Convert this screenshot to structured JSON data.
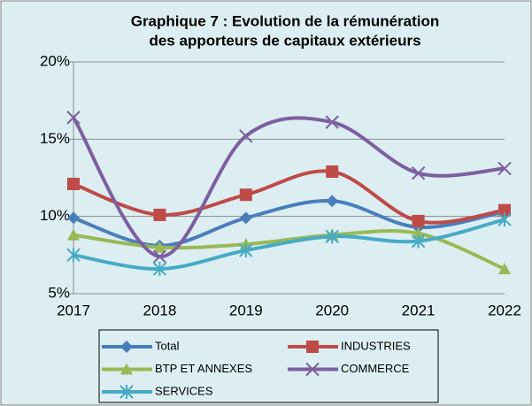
{
  "chart_data": {
    "type": "line",
    "title": [
      "Graphique 7 : Evolution de la rémunération",
      "des apporteurs de capitaux extérieurs"
    ],
    "categories": [
      "2017",
      "2018",
      "2019",
      "2020",
      "2021",
      "2022"
    ],
    "ylim": [
      5,
      20
    ],
    "yticks": [
      {
        "value": 5,
        "label": "5%"
      },
      {
        "value": 10,
        "label": "10%"
      },
      {
        "value": 15,
        "label": "15%"
      },
      {
        "value": 20,
        "label": "20%"
      }
    ],
    "grid": true,
    "legend": "bottom",
    "series": [
      {
        "name": "Total",
        "color": "#4a7ebb",
        "marker": "diamond",
        "values": [
          9.9,
          8.1,
          9.9,
          11.0,
          9.3,
          10.3
        ]
      },
      {
        "name": "INDUSTRIES",
        "color": "#be4b48",
        "marker": "square",
        "values": [
          12.1,
          10.1,
          11.4,
          12.9,
          9.7,
          10.4
        ]
      },
      {
        "name": "BTP ET ANNEXES",
        "color": "#98b954",
        "marker": "triangle",
        "values": [
          8.8,
          8.0,
          8.2,
          8.8,
          8.9,
          6.6
        ]
      },
      {
        "name": "COMMERCE",
        "color": "#7d5fa0",
        "marker": "x",
        "values": [
          16.4,
          7.4,
          15.2,
          16.1,
          12.8,
          13.1
        ]
      },
      {
        "name": "SERVICES",
        "color": "#46aac5",
        "marker": "star",
        "values": [
          7.5,
          6.6,
          7.8,
          8.7,
          8.4,
          9.8
        ]
      }
    ]
  }
}
